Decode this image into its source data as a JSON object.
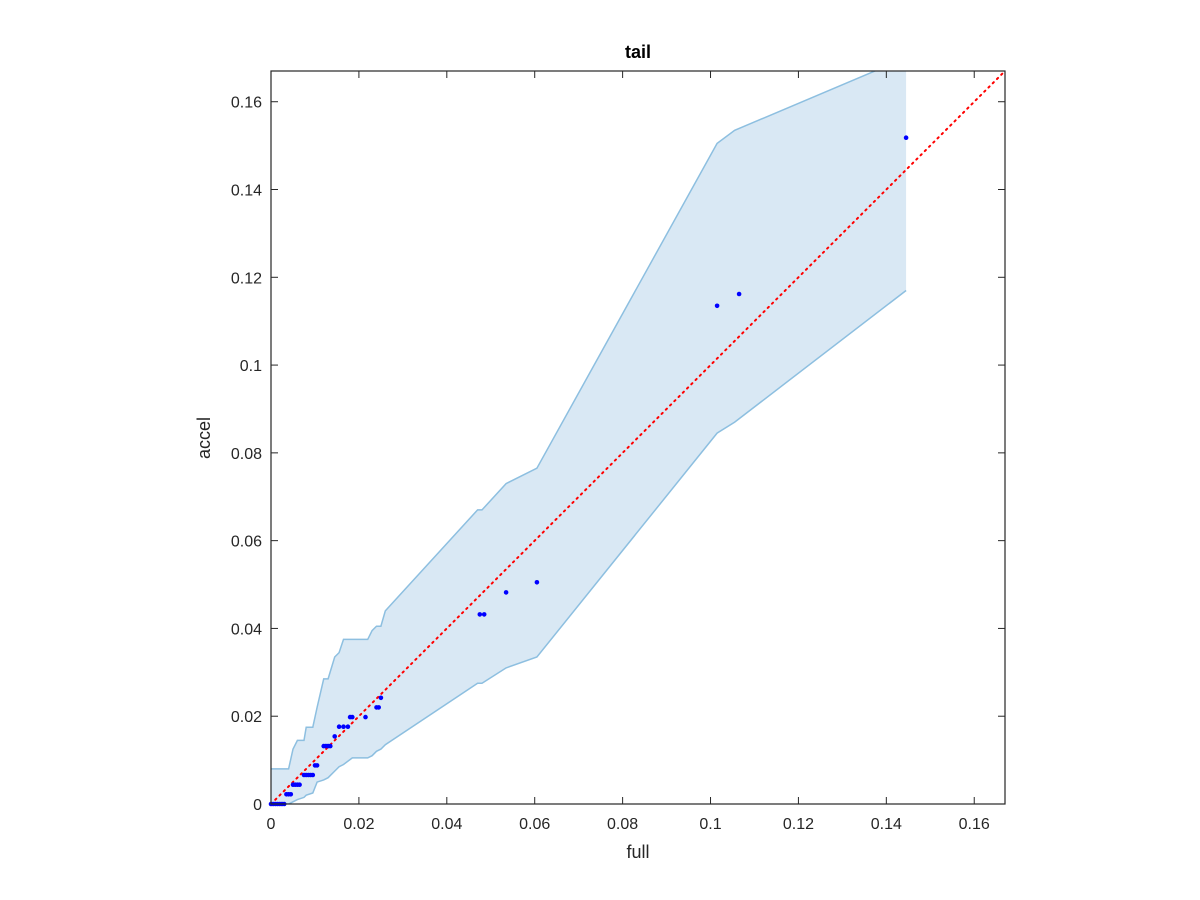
{
  "chart_data": {
    "type": "scatter",
    "title": "tail",
    "xlabel": "full",
    "ylabel": "accel",
    "xlim": [
      0,
      0.167
    ],
    "ylim": [
      0,
      0.167
    ],
    "grid": false,
    "xticks": [
      0,
      0.02,
      0.04,
      0.06,
      0.08,
      0.1,
      0.12,
      0.14,
      0.16
    ],
    "xtick_labels": [
      "0",
      "0.02",
      "0.04",
      "0.06",
      "0.08",
      "0.1",
      "0.12",
      "0.14",
      "0.16"
    ],
    "yticks": [
      0,
      0.02,
      0.04,
      0.06,
      0.08,
      0.1,
      0.12,
      0.14,
      0.16
    ],
    "ytick_labels": [
      "0",
      "0.02",
      "0.04",
      "0.06",
      "0.08",
      "0.1",
      "0.12",
      "0.14",
      "0.16"
    ],
    "colors": {
      "points": "#0000ff",
      "reference_line": "#ff0000",
      "band_fill": "#d9e8f4",
      "band_edge": "#8dbfe0",
      "axes": "#262626"
    },
    "series": [
      {
        "type": "scatter",
        "x": [
          0,
          0.0005,
          0.001,
          0.0015,
          0.002,
          0.0025,
          0.003,
          0.0035,
          0.004,
          0.0045,
          0.005,
          0.0055,
          0.006,
          0.0065,
          0.0075,
          0.008,
          0.0085,
          0.009,
          0.0095,
          0.01,
          0.0105,
          0.012,
          0.0125,
          0.013,
          0.0135,
          0.0145,
          0.0155,
          0.0165,
          0.0175,
          0.018,
          0.0185,
          0.0215,
          0.024,
          0.0245,
          0.025,
          0.0475,
          0.0485,
          0.0535,
          0.0605,
          0.1015,
          0.1065,
          0.1445
        ],
        "y": [
          0,
          0,
          0,
          0,
          0,
          0,
          0,
          0.0022,
          0.0022,
          0.0022,
          0.0044,
          0.0044,
          0.0044,
          0.0044,
          0.0066,
          0.0066,
          0.0066,
          0.0066,
          0.0066,
          0.0088,
          0.0088,
          0.0132,
          0.0132,
          0.0132,
          0.0132,
          0.0154,
          0.0176,
          0.0176,
          0.0176,
          0.0198,
          0.0198,
          0.0198,
          0.022,
          0.022,
          0.0242,
          0.0432,
          0.0432,
          0.0482,
          0.0505,
          0.1135,
          0.1162,
          0.1518
        ]
      },
      {
        "type": "line",
        "style": "dotted",
        "x": [
          0,
          0.167
        ],
        "y": [
          0,
          0.167
        ]
      },
      {
        "type": "area",
        "x": [
          0,
          0.0005,
          0.004,
          0.005,
          0.006,
          0.0075,
          0.008,
          0.0095,
          0.0105,
          0.012,
          0.013,
          0.0145,
          0.0155,
          0.0165,
          0.0185,
          0.0195,
          0.0205,
          0.022,
          0.023,
          0.024,
          0.025,
          0.026,
          0.047,
          0.048,
          0.0535,
          0.0605,
          0.1015,
          0.1055,
          0.1445
        ],
        "y_upper": [
          0.008,
          0.008,
          0.008,
          0.0125,
          0.0145,
          0.0145,
          0.0175,
          0.0175,
          0.022,
          0.0285,
          0.0285,
          0.0335,
          0.0345,
          0.0375,
          0.0375,
          0.0375,
          0.0375,
          0.0375,
          0.0395,
          0.0405,
          0.0405,
          0.044,
          0.067,
          0.067,
          0.073,
          0.0765,
          0.1505,
          0.1535,
          0.17
        ],
        "y_lower": [
          0,
          0,
          0,
          0.0005,
          0.001,
          0.0015,
          0.002,
          0.0025,
          0.005,
          0.0055,
          0.006,
          0.0075,
          0.0085,
          0.009,
          0.0105,
          0.0105,
          0.0105,
          0.0105,
          0.011,
          0.012,
          0.0125,
          0.0135,
          0.0275,
          0.0275,
          0.031,
          0.0335,
          0.0845,
          0.087,
          0.117
        ]
      }
    ]
  }
}
